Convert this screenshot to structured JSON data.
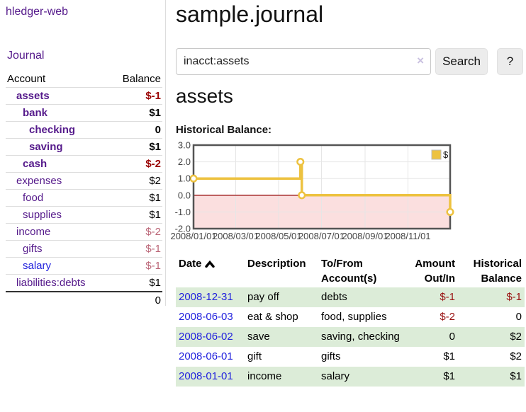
{
  "colors": {
    "accent_purple": "#551a8b",
    "link_blue": "#2222dd",
    "negative_strong": "#990000",
    "negative_soft": "#bb6677",
    "row_stripe_green": "#dcecd8",
    "chart_line": "#edc240",
    "chart_zero_line": "#991111",
    "chart_negative_fill": "#fbdfdf"
  },
  "sidebar": {
    "brand": "hledger-web",
    "journal_link": "Journal",
    "accounts_table": {
      "col_account": "Account",
      "col_balance": "Balance",
      "rows": [
        {
          "name": "assets",
          "depth": 1,
          "bold": true,
          "balance": "$-1",
          "neg": "strong"
        },
        {
          "name": "bank",
          "depth": 2,
          "bold": true,
          "balance": "$1",
          "neg": "none"
        },
        {
          "name": "checking",
          "depth": 3,
          "bold": true,
          "balance": "0",
          "neg": "none"
        },
        {
          "name": "saving",
          "depth": 3,
          "bold": true,
          "balance": "$1",
          "neg": "none"
        },
        {
          "name": "cash",
          "depth": 2,
          "bold": true,
          "balance": "$-2",
          "neg": "strong"
        },
        {
          "name": "expenses",
          "depth": 1,
          "bold": false,
          "balance": "$2",
          "neg": "none"
        },
        {
          "name": "food",
          "depth": 2,
          "bold": false,
          "balance": "$1",
          "neg": "none"
        },
        {
          "name": "supplies",
          "depth": 2,
          "bold": false,
          "balance": "$1",
          "neg": "none"
        },
        {
          "name": "income",
          "depth": 1,
          "bold": false,
          "balance": "$-2",
          "neg": "soft"
        },
        {
          "name": "gifts",
          "depth": 2,
          "bold": false,
          "balance": "$-1",
          "neg": "soft"
        },
        {
          "name": "salary",
          "depth": 2,
          "bold": false,
          "balance": "$-1",
          "neg": "soft",
          "link_color": "blue"
        },
        {
          "name": "liabilities:debts",
          "depth": 1,
          "bold": false,
          "balance": "$1",
          "neg": "none"
        }
      ],
      "total": "0"
    }
  },
  "main": {
    "title": "sample.journal",
    "search": {
      "value": "inacct:assets",
      "clear_icon": "×",
      "search_button": "Search",
      "help_button": "?"
    },
    "account_heading": "assets"
  },
  "chart_data": {
    "type": "line",
    "step": true,
    "title": "Historical Balance:",
    "legend": {
      "label": "$",
      "position": "top-right"
    },
    "series": [
      {
        "name": "$",
        "color": "#edc240",
        "points": [
          {
            "x": "2008-01-01",
            "y": 1
          },
          {
            "x": "2008-06-01",
            "y": 2
          },
          {
            "x": "2008-06-03",
            "y": 0
          },
          {
            "x": "2008-12-31",
            "y": -1
          }
        ]
      }
    ],
    "x_domain": [
      "2008-01-01",
      "2008-12-31"
    ],
    "ylim": [
      -2.0,
      3.0
    ],
    "y_ticks": [
      {
        "v": 3.0,
        "label": "3.0"
      },
      {
        "v": 2.0,
        "label": "2.0"
      },
      {
        "v": 1.0,
        "label": "1.0"
      },
      {
        "v": 0.0,
        "label": "0.0"
      },
      {
        "v": -1.0,
        "label": "-1.0"
      },
      {
        "v": -2.0,
        "label": "-2.0"
      }
    ],
    "x_ticks": [
      {
        "x": "2008-01-01",
        "label": "2008/01/01"
      },
      {
        "x": "2008-03-01",
        "label": "2008/03/01"
      },
      {
        "x": "2008-05-01",
        "label": "2008/05/01"
      },
      {
        "x": "2008-07-01",
        "label": "2008/07/01"
      },
      {
        "x": "2008-09-01",
        "label": "2008/09/01"
      },
      {
        "x": "2008-11-01",
        "label": "2008/11/01"
      }
    ],
    "grid": true,
    "zero_line": true,
    "negative_region_filled": true
  },
  "register": {
    "headers": {
      "date": "Date",
      "description": "Description",
      "accounts": "To/From Account(s)",
      "amount": "Amount Out/In",
      "balance": "Historical Balance"
    },
    "sort": {
      "column": "date",
      "direction": "asc"
    },
    "rows": [
      {
        "date": "2008-12-31",
        "description": "pay off",
        "accounts": "debts",
        "amount": "$-1",
        "balance": "$-1"
      },
      {
        "date": "2008-06-03",
        "description": "eat & shop",
        "accounts": "food, supplies",
        "amount": "$-2",
        "balance": "0"
      },
      {
        "date": "2008-06-02",
        "description": "save",
        "accounts": "saving, checking",
        "amount": "0",
        "balance": "$2"
      },
      {
        "date": "2008-06-01",
        "description": "gift",
        "accounts": "gifts",
        "amount": "$1",
        "balance": "$2"
      },
      {
        "date": "2008-01-01",
        "description": "income",
        "accounts": "salary",
        "amount": "$1",
        "balance": "$1"
      }
    ]
  }
}
